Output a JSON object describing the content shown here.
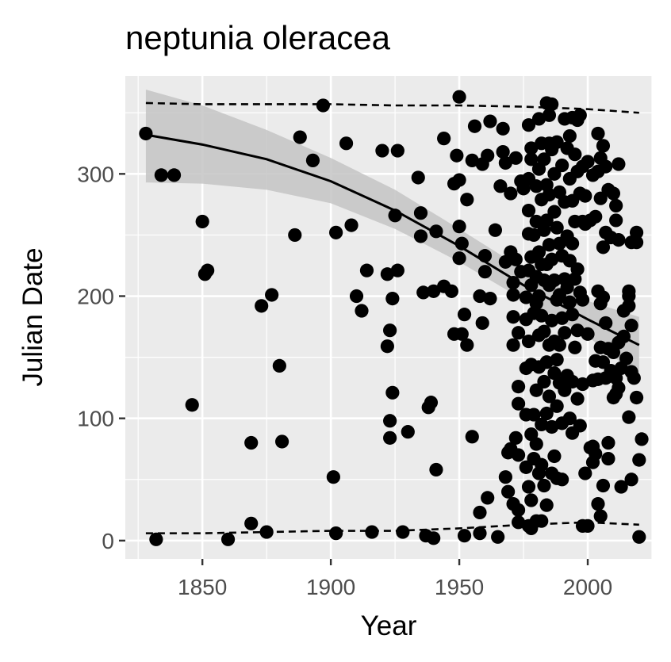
{
  "chart_data": {
    "type": "scatter",
    "title": "neptunia oleracea",
    "xlabel": "Year",
    "ylabel": "Julian Date",
    "xlim": [
      1820,
      2025
    ],
    "ylim": [
      -15,
      380
    ],
    "xticks": [
      1850,
      1900,
      1950,
      2000
    ],
    "yticks": [
      0,
      100,
      200,
      300
    ],
    "grid": true,
    "colors": {
      "panel": "#ebebeb",
      "grid": "#ffffff",
      "points": "#000000",
      "ribbon": "#c4c4c4",
      "tick_text": "#4d4d4d"
    },
    "points": [
      [
        1828,
        333
      ],
      [
        1832,
        1
      ],
      [
        1834,
        299
      ],
      [
        1839,
        299
      ],
      [
        1846,
        111
      ],
      [
        1850,
        261
      ],
      [
        1851,
        218
      ],
      [
        1852,
        221
      ],
      [
        1860,
        1
      ],
      [
        1869,
        14
      ],
      [
        1869,
        80
      ],
      [
        1873,
        192
      ],
      [
        1875,
        7
      ],
      [
        1877,
        201
      ],
      [
        1880,
        143
      ],
      [
        1881,
        81
      ],
      [
        1886,
        250
      ],
      [
        1888,
        330
      ],
      [
        1893,
        311
      ],
      [
        1897,
        356
      ],
      [
        1901,
        52
      ],
      [
        1902,
        6
      ],
      [
        1902,
        252
      ],
      [
        1906,
        325
      ],
      [
        1908,
        258
      ],
      [
        1910,
        200
      ],
      [
        1912,
        188
      ],
      [
        1914,
        221
      ],
      [
        1916,
        7
      ],
      [
        1920,
        319
      ],
      [
        1922,
        159
      ],
      [
        1922,
        218
      ],
      [
        1923,
        172
      ],
      [
        1923,
        98
      ],
      [
        1923,
        84
      ],
      [
        1924,
        121
      ],
      [
        1924,
        198
      ],
      [
        1925,
        266
      ],
      [
        1926,
        221
      ],
      [
        1926,
        319
      ],
      [
        1928,
        7
      ],
      [
        1930,
        89
      ],
      [
        1934,
        297
      ],
      [
        1935,
        268
      ],
      [
        1935,
        249
      ],
      [
        1936,
        203
      ],
      [
        1937,
        4
      ],
      [
        1938,
        109
      ],
      [
        1939,
        113
      ],
      [
        1940,
        204
      ],
      [
        1940,
        2
      ],
      [
        1941,
        253
      ],
      [
        1941,
        58
      ],
      [
        1944,
        208
      ],
      [
        1944,
        329
      ],
      [
        1947,
        204
      ],
      [
        1948,
        169
      ],
      [
        1948,
        292
      ],
      [
        1949,
        315
      ],
      [
        1950,
        363
      ],
      [
        1950,
        295
      ],
      [
        1950,
        257
      ],
      [
        1950,
        231
      ],
      [
        1951,
        243
      ],
      [
        1951,
        169
      ],
      [
        1952,
        4
      ],
      [
        1952,
        185
      ],
      [
        1953,
        160
      ],
      [
        1953,
        279
      ],
      [
        1955,
        85
      ],
      [
        1955,
        311
      ],
      [
        1956,
        339
      ],
      [
        1958,
        200
      ],
      [
        1958,
        23
      ],
      [
        1958,
        6
      ],
      [
        1959,
        308
      ],
      [
        1959,
        178
      ],
      [
        1960,
        233
      ],
      [
        1960,
        220
      ],
      [
        1961,
        315
      ],
      [
        1961,
        35
      ],
      [
        1962,
        343
      ],
      [
        1962,
        198
      ],
      [
        1964,
        254
      ],
      [
        1965,
        3
      ],
      [
        1966,
        290
      ],
      [
        1967,
        337
      ],
      [
        1967,
        318
      ],
      [
        1968,
        309
      ],
      [
        1968,
        52
      ],
      [
        1968,
        228
      ],
      [
        1969,
        40
      ],
      [
        1969,
        72
      ],
      [
        1970,
        284
      ],
      [
        1970,
        75
      ],
      [
        1970,
        236
      ],
      [
        1971,
        211
      ],
      [
        1971,
        201
      ],
      [
        1971,
        183
      ],
      [
        1971,
        160
      ],
      [
        1971,
        30
      ],
      [
        1972,
        313
      ],
      [
        1972,
        230
      ],
      [
        1972,
        84
      ],
      [
        1973,
        170
      ],
      [
        1973,
        126
      ],
      [
        1973,
        112
      ],
      [
        1973,
        70
      ],
      [
        1973,
        25
      ],
      [
        1973,
        15
      ],
      [
        1974,
        220
      ],
      [
        1974,
        294
      ],
      [
        1975,
        288
      ],
      [
        1976,
        199
      ],
      [
        1976,
        181
      ],
      [
        1976,
        141
      ],
      [
        1976,
        103
      ],
      [
        1976,
        60
      ],
      [
        1977,
        340
      ],
      [
        1977,
        296
      ],
      [
        1977,
        270
      ],
      [
        1977,
        251
      ],
      [
        1977,
        221
      ],
      [
        1977,
        163
      ],
      [
        1977,
        44
      ],
      [
        1977,
        12
      ],
      [
        1978,
        321
      ],
      [
        1978,
        312
      ],
      [
        1978,
        232
      ],
      [
        1978,
        209
      ],
      [
        1978,
        144
      ],
      [
        1978,
        87
      ],
      [
        1978,
        33
      ],
      [
        1978,
        10
      ],
      [
        1979,
        250
      ],
      [
        1979,
        186
      ],
      [
        1979,
        103
      ],
      [
        1979,
        67
      ],
      [
        1980,
        290
      ],
      [
        1980,
        261
      ],
      [
        1980,
        216
      ],
      [
        1980,
        194
      ],
      [
        1980,
        123
      ],
      [
        1980,
        79
      ],
      [
        1980,
        16
      ],
      [
        1981,
        345
      ],
      [
        1981,
        304
      ],
      [
        1981,
        236
      ],
      [
        1981,
        200
      ],
      [
        1981,
        168
      ],
      [
        1981,
        142
      ],
      [
        1981,
        55
      ],
      [
        1982,
        325
      ],
      [
        1982,
        279
      ],
      [
        1982,
        226
      ],
      [
        1982,
        184
      ],
      [
        1982,
        95
      ],
      [
        1982,
        62
      ],
      [
        1982,
        16
      ],
      [
        1983,
        312
      ],
      [
        1983,
        254
      ],
      [
        1983,
        213
      ],
      [
        1983,
        171
      ],
      [
        1983,
        130
      ],
      [
        1983,
        45
      ],
      [
        1984,
        358
      ],
      [
        1984,
        291
      ],
      [
        1984,
        262
      ],
      [
        1984,
        226
      ],
      [
        1984,
        146
      ],
      [
        1984,
        104
      ],
      [
        1984,
        29
      ],
      [
        1985,
        348
      ],
      [
        1985,
        325
      ],
      [
        1985,
        283
      ],
      [
        1985,
        242
      ],
      [
        1985,
        209
      ],
      [
        1985,
        160
      ],
      [
        1985,
        118
      ],
      [
        1986,
        357
      ],
      [
        1986,
        320
      ],
      [
        1986,
        230
      ],
      [
        1986,
        180
      ],
      [
        1986,
        55
      ],
      [
        1986,
        93
      ],
      [
        1987,
        300
      ],
      [
        1987,
        269
      ],
      [
        1987,
        213
      ],
      [
        1987,
        163
      ],
      [
        1987,
        137
      ],
      [
        1987,
        69
      ],
      [
        1988,
        326
      ],
      [
        1988,
        256
      ],
      [
        1988,
        197
      ],
      [
        1988,
        148
      ],
      [
        1988,
        110
      ],
      [
        1988,
        51
      ],
      [
        1989,
        285
      ],
      [
        1989,
        243
      ],
      [
        1989,
        201
      ],
      [
        1989,
        160
      ],
      [
        1989,
        129
      ],
      [
        1990,
        307
      ],
      [
        1990,
        233
      ],
      [
        1990,
        182
      ],
      [
        1990,
        96
      ],
      [
        1990,
        50
      ],
      [
        1991,
        345
      ],
      [
        1991,
        277
      ],
      [
        1991,
        214
      ],
      [
        1991,
        170
      ],
      [
        1991,
        123
      ],
      [
        1992,
        321
      ],
      [
        1992,
        249
      ],
      [
        1992,
        207
      ],
      [
        1992,
        135
      ],
      [
        1993,
        331
      ],
      [
        1993,
        296
      ],
      [
        1993,
        229
      ],
      [
        1993,
        195
      ],
      [
        1993,
        100
      ],
      [
        1994,
        346
      ],
      [
        1994,
        278
      ],
      [
        1994,
        243
      ],
      [
        1994,
        185
      ],
      [
        1994,
        130
      ],
      [
        1994,
        88
      ],
      [
        1995,
        316
      ],
      [
        1995,
        261
      ],
      [
        1995,
        214
      ],
      [
        1995,
        158
      ],
      [
        1996,
        344
      ],
      [
        1996,
        302
      ],
      [
        1996,
        222
      ],
      [
        1996,
        172
      ],
      [
        1996,
        116
      ],
      [
        1997,
        348
      ],
      [
        1997,
        284
      ],
      [
        1997,
        203
      ],
      [
        1997,
        94
      ],
      [
        1998,
        306
      ],
      [
        1998,
        261
      ],
      [
        1998,
        197
      ],
      [
        1998,
        128
      ],
      [
        1998,
        12
      ],
      [
        1999,
        282
      ],
      [
        1999,
        259
      ],
      [
        1999,
        55
      ],
      [
        2000,
        310
      ],
      [
        2000,
        169
      ],
      [
        2000,
        12
      ],
      [
        2001,
        262
      ],
      [
        2001,
        76
      ],
      [
        2002,
        299
      ],
      [
        2002,
        131
      ],
      [
        2002,
        77
      ],
      [
        2002,
        64
      ],
      [
        2003,
        265
      ],
      [
        2003,
        147
      ],
      [
        2003,
        71
      ],
      [
        2004,
        333
      ],
      [
        2004,
        302
      ],
      [
        2004,
        204
      ],
      [
        2004,
        132
      ],
      [
        2004,
        30
      ],
      [
        2005,
        313
      ],
      [
        2005,
        280
      ],
      [
        2005,
        194
      ],
      [
        2005,
        158
      ],
      [
        2005,
        20
      ],
      [
        2006,
        323
      ],
      [
        2006,
        240
      ],
      [
        2006,
        199
      ],
      [
        2006,
        146
      ],
      [
        2006,
        45
      ],
      [
        2007,
        306
      ],
      [
        2007,
        252
      ],
      [
        2007,
        178
      ],
      [
        2007,
        133
      ],
      [
        2008,
        287
      ],
      [
        2008,
        157
      ],
      [
        2008,
        80
      ],
      [
        2008,
        67
      ],
      [
        2009,
        248
      ],
      [
        2009,
        139
      ],
      [
        2010,
        284
      ],
      [
        2010,
        154
      ],
      [
        2010,
        117
      ],
      [
        2011,
        274
      ],
      [
        2011,
        262
      ],
      [
        2011,
        133
      ],
      [
        2011,
        120
      ],
      [
        2012,
        308
      ],
      [
        2012,
        246
      ],
      [
        2012,
        162
      ],
      [
        2012,
        125
      ],
      [
        2013,
        141
      ],
      [
        2013,
        44
      ],
      [
        2014,
        188
      ],
      [
        2014,
        167
      ],
      [
        2015,
        149
      ],
      [
        2016,
        204
      ],
      [
        2016,
        200
      ],
      [
        2016,
        192
      ],
      [
        2016,
        101
      ],
      [
        2017,
        244
      ],
      [
        2017,
        176
      ],
      [
        2017,
        138
      ],
      [
        2017,
        50
      ],
      [
        2018,
        133
      ],
      [
        2019,
        252
      ],
      [
        2019,
        244
      ],
      [
        2019,
        117
      ],
      [
        2020,
        66
      ],
      [
        2020,
        3
      ],
      [
        2021,
        83
      ]
    ],
    "trend": {
      "x": [
        1828,
        1850,
        1875,
        1900,
        1925,
        1950,
        1975,
        2000,
        2020
      ],
      "y": [
        332,
        324,
        312,
        294,
        270,
        241,
        209,
        181,
        160
      ],
      "lower": [
        293,
        292,
        287,
        276,
        255,
        228,
        197,
        167,
        134
      ],
      "upper": [
        369,
        356,
        336,
        313,
        287,
        255,
        222,
        196,
        183
      ]
    },
    "upper_limit": {
      "x": [
        1828,
        1850,
        1875,
        1900,
        1925,
        1950,
        1975,
        2000,
        2020
      ],
      "y": [
        358,
        357,
        357,
        357,
        356,
        356,
        355,
        353,
        350
      ]
    },
    "lower_limit": {
      "x": [
        1828,
        1850,
        1875,
        1900,
        1925,
        1950,
        1975,
        2000,
        2020
      ],
      "y": [
        6,
        6,
        7,
        8,
        8,
        10,
        13,
        15,
        13
      ]
    }
  }
}
